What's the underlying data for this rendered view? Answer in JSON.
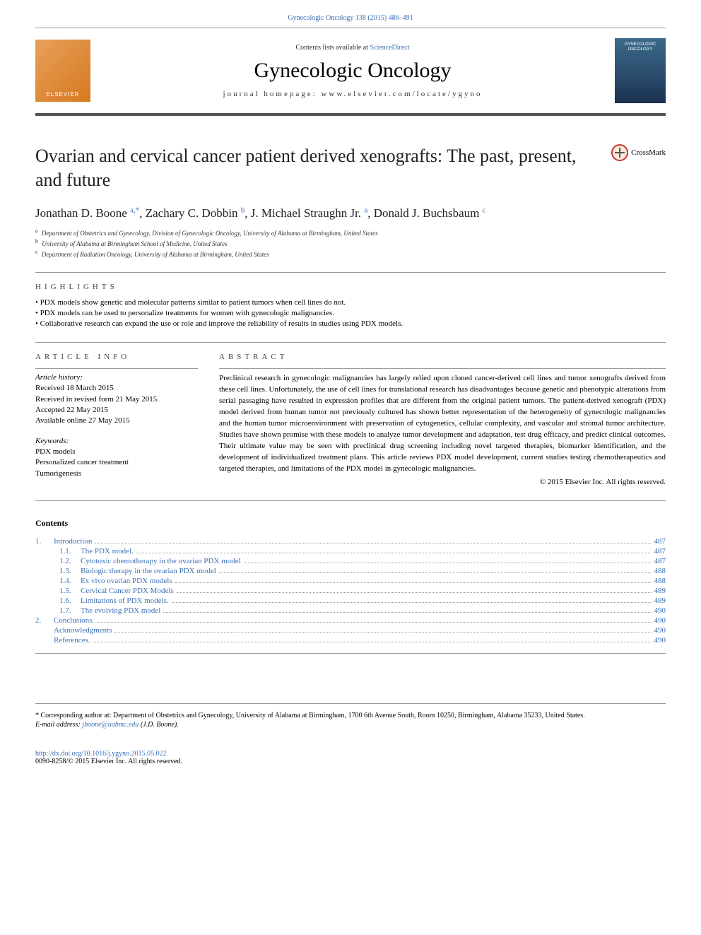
{
  "top_reference": {
    "text": "Gynecologic Oncology 138 (2015) 486–491",
    "link_color": "#3b6fb6"
  },
  "header": {
    "elsevier_label": "ELSEVIER",
    "contents_prefix": "Contents lists available at ",
    "contents_link": "ScienceDirect",
    "journal_name": "Gynecologic Oncology",
    "homepage_label": "journal homepage: www.elsevier.com/locate/ygyno",
    "cover_text_line1": "GYNECOLOGIC",
    "cover_text_line2": "ONCOLOGY"
  },
  "article": {
    "title": "Ovarian and cervical cancer patient derived xenografts: The past, present, and future",
    "crossmark_label": "CrossMark",
    "authors": [
      {
        "name": "Jonathan D. Boone",
        "sup": "a,*"
      },
      {
        "name": "Zachary C. Dobbin",
        "sup": "b"
      },
      {
        "name": "J. Michael Straughn Jr.",
        "sup": "a"
      },
      {
        "name": "Donald J. Buchsbaum",
        "sup": "c"
      }
    ],
    "affiliations": [
      {
        "sup": "a",
        "text": "Department of Obstetrics and Gynecology, Division of Gynecologic Oncology, University of Alabama at Birmingham, United States"
      },
      {
        "sup": "b",
        "text": "University of Alabama at Birmingham School of Medicine, United States"
      },
      {
        "sup": "c",
        "text": "Department of Radiation Oncology, University of Alabama at Birmingham, United States"
      }
    ]
  },
  "highlights": {
    "heading": "HIGHLIGHTS",
    "items": [
      "PDX models show genetic and molecular patterns similar to patient tumors when cell lines do not.",
      "PDX models can be used to personalize treatments for women with gynecologic malignancies.",
      "Collaborative research can expand the use or role and improve the reliability of results in studies using PDX models."
    ]
  },
  "article_info": {
    "heading": "ARTICLE INFO",
    "history_label": "Article history:",
    "dates": [
      "Received 18 March 2015",
      "Received in revised form 21 May 2015",
      "Accepted 22 May 2015",
      "Available online 27 May 2015"
    ],
    "keywords_label": "Keywords:",
    "keywords": [
      "PDX models",
      "Personalized cancer treatment",
      "Tumorigenesis"
    ]
  },
  "abstract": {
    "heading": "ABSTRACT",
    "text": "Preclinical research in gynecologic malignancies has largely relied upon cloned cancer-derived cell lines and tumor xenografts derived from these cell lines. Unfortunately, the use of cell lines for translational research has disadvantages because genetic and phenotypic alterations from serial passaging have resulted in expression profiles that are different from the original patient tumors. The patient-derived xenograft (PDX) model derived from human tumor not previously cultured has shown better representation of the heterogeneity of gynecologic malignancies and the human tumor microenvironment with preservation of cytogenetics, cellular complexity, and vascular and stromal tumor architecture. Studies have shown promise with these models to analyze tumor development and adaptation, test drug efficacy, and predict clinical outcomes. Their ultimate value may be seen with preclinical drug screening including novel targeted therapies, biomarker identification, and the development of individualized treatment plans. This article reviews PDX model development, current studies testing chemotherapeutics and targeted therapies, and limitations of the PDX model in gynecologic malignancies.",
    "copyright": "© 2015 Elsevier Inc. All rights reserved."
  },
  "contents": {
    "heading": "Contents",
    "entries": [
      {
        "num": "1.",
        "sub": null,
        "title": "Introduction",
        "page": "487"
      },
      {
        "num": null,
        "sub": "1.1.",
        "title": "The PDX model.",
        "page": "487"
      },
      {
        "num": null,
        "sub": "1.2.",
        "title": "Cytotoxic chemotherapy in the ovarian PDX model",
        "page": "487"
      },
      {
        "num": null,
        "sub": "1.3.",
        "title": "Biologic therapy in the ovarian PDX model",
        "page": "488"
      },
      {
        "num": null,
        "sub": "1.4.",
        "title": "Ex vivo ovarian PDX models",
        "page": "488"
      },
      {
        "num": null,
        "sub": "1.5.",
        "title": "Cervical Cancer PDX Models",
        "page": "489"
      },
      {
        "num": null,
        "sub": "1.6.",
        "title": "Limitations of PDX models.",
        "page": "489"
      },
      {
        "num": null,
        "sub": "1.7.",
        "title": "The evolving PDX model",
        "page": "490"
      },
      {
        "num": "2.",
        "sub": null,
        "title": "Conclusions.",
        "page": "490"
      },
      {
        "num": "",
        "sub": null,
        "title": "Acknowledgments",
        "page": "490"
      },
      {
        "num": "",
        "sub": null,
        "title": "References.",
        "page": "490"
      }
    ]
  },
  "footer": {
    "corresponding": "* Corresponding author at: Department of Obstetrics and Gynecology, University of Alabama at Birmingham, 1700 6th Avenue South, Room 10250, Birmingham, Alabama 35233, United States.",
    "email_label": "E-mail address:",
    "email": "jboone@uabmc.edu",
    "email_name": "(J.D. Boone).",
    "doi": "http://dx.doi.org/10.1016/j.ygyno.2015.05.022",
    "issn_line": "0090-8258/© 2015 Elsevier Inc. All rights reserved."
  },
  "colors": {
    "link": "#3b6fb6",
    "text": "#000000",
    "rule": "#999999",
    "elsevier_bg": "#d67820",
    "cover_bg": "#2a4a6a"
  }
}
